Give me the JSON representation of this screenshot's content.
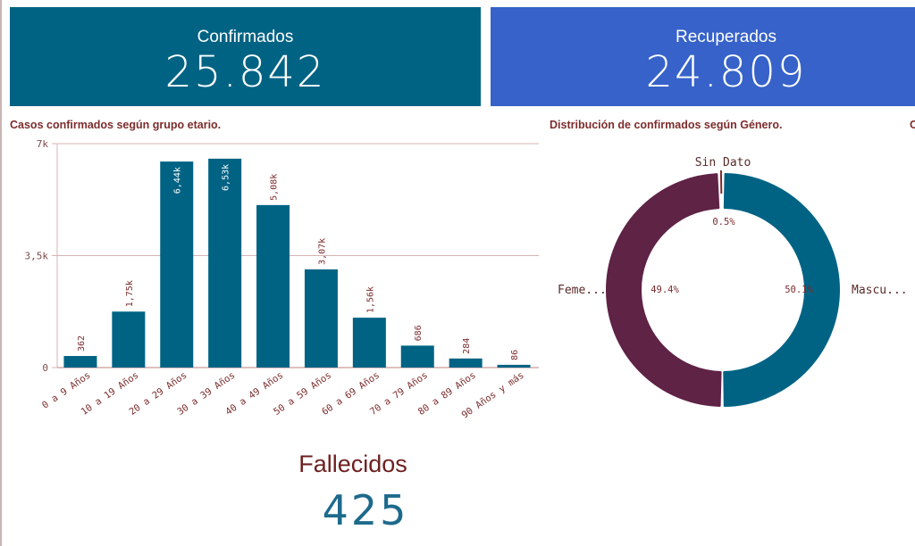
{
  "kpis": {
    "confirmados": {
      "label": "Confirmados",
      "value": "25.842",
      "color": "#006384"
    },
    "recuperados": {
      "label": "Recuperados",
      "value": "24.809",
      "color": "#3662c9"
    },
    "fallecidos": {
      "label": "Fallecidos",
      "value": "425"
    }
  },
  "sections": {
    "age_title": "Casos confirmados según grupo etario.",
    "gender_title": "Distribución de confirmados según Género.",
    "third_title_partial": "C"
  },
  "chart_data": [
    {
      "type": "bar",
      "title": "Casos confirmados según grupo etario.",
      "categories": [
        "0 a 9 Años",
        "10 a 19 Años",
        "20 a 29 Años",
        "30 a 39 Años",
        "40 a 49 Años",
        "50 a 59 Años",
        "60 a 69 Años",
        "70 a 79 Años",
        "80 a 89 Años",
        "90 Años y más"
      ],
      "values": [
        362,
        1750,
        6440,
        6530,
        5080,
        3070,
        1560,
        686,
        284,
        86
      ],
      "value_labels": [
        "362",
        "1,75k",
        "6,44k",
        "6,53k",
        "5,08k",
        "3,07k",
        "1,56k",
        "686",
        "284",
        "86"
      ],
      "yticks": [
        0,
        3500,
        7000
      ],
      "ytick_labels": [
        "0",
        "3,5k",
        "7k"
      ],
      "ylim": [
        0,
        7000
      ],
      "xlabel": "",
      "ylabel": "",
      "grid": true,
      "bar_color": "#006384"
    },
    {
      "type": "pie",
      "style": "donut",
      "title": "Distribución de confirmados según Género.",
      "slices": [
        {
          "name": "Masculino",
          "label": "Mascu...",
          "value": 50.1,
          "value_label": "50.1%",
          "color": "#006384"
        },
        {
          "name": "Femenino",
          "label": "Feme...",
          "value": 49.4,
          "value_label": "49.4%",
          "color": "#5f2346"
        },
        {
          "name": "Sin Dato",
          "label": "Sin Dato",
          "value": 0.5,
          "value_label": "0.5%",
          "color": "#7d2c2c"
        }
      ]
    }
  ]
}
